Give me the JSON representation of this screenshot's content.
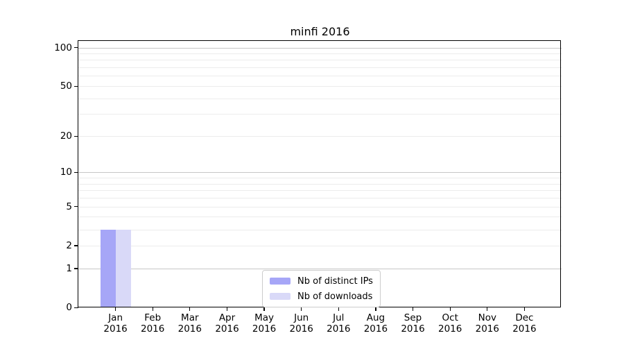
{
  "chart_data": {
    "type": "bar",
    "title": "minfi 2016",
    "categories": [
      {
        "month": "Jan",
        "year": "2016"
      },
      {
        "month": "Feb",
        "year": "2016"
      },
      {
        "month": "Mar",
        "year": "2016"
      },
      {
        "month": "Apr",
        "year": "2016"
      },
      {
        "month": "May",
        "year": "2016"
      },
      {
        "month": "Jun",
        "year": "2016"
      },
      {
        "month": "Jul",
        "year": "2016"
      },
      {
        "month": "Aug",
        "year": "2016"
      },
      {
        "month": "Sep",
        "year": "2016"
      },
      {
        "month": "Oct",
        "year": "2016"
      },
      {
        "month": "Nov",
        "year": "2016"
      },
      {
        "month": "Dec",
        "year": "2016"
      }
    ],
    "series": [
      {
        "name": "Nb of distinct IPs",
        "color": "#a6a6f7",
        "values": [
          3,
          0,
          0,
          0,
          0,
          0,
          0,
          0,
          0,
          0,
          0,
          0
        ]
      },
      {
        "name": "Nb of downloads",
        "color": "#d9d9f8",
        "values": [
          3,
          0,
          0,
          0,
          0,
          0,
          0,
          0,
          0,
          0,
          0,
          0
        ]
      }
    ],
    "yaxis": {
      "scale": "log1p",
      "ylim": [
        0,
        114
      ],
      "ticks": [
        {
          "value": 0,
          "label": "0"
        },
        {
          "value": 1,
          "label": "1"
        },
        {
          "value": 2,
          "label": "2"
        },
        {
          "value": 5,
          "label": "5"
        },
        {
          "value": 10,
          "label": "10"
        },
        {
          "value": 20,
          "label": "20"
        },
        {
          "value": 50,
          "label": "50"
        },
        {
          "value": 100,
          "label": "100"
        }
      ],
      "grid_major": [
        1,
        10,
        100
      ],
      "grid_minor": [
        2,
        3,
        4,
        5,
        6,
        7,
        8,
        9,
        20,
        30,
        40,
        50,
        60,
        70,
        80,
        90
      ]
    },
    "legend_position": "bottom-center",
    "grid": "on"
  }
}
